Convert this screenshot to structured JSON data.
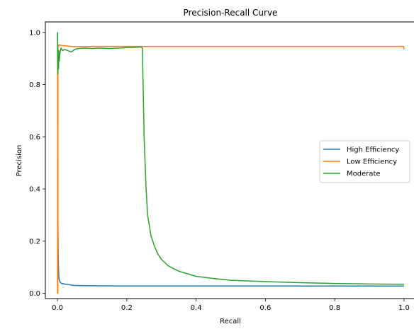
{
  "chart_data": {
    "type": "line",
    "title": "Precision-Recall Curve",
    "xlabel": "Recall",
    "ylabel": "Precision",
    "xlim": [
      -0.035,
      1.035
    ],
    "ylim": [
      -0.02,
      1.04
    ],
    "xticks": [
      0.0,
      0.2,
      0.4,
      0.6,
      0.8,
      1.0
    ],
    "xtick_labels": [
      "0.0",
      "0.2",
      "0.4",
      "0.6",
      "0.8",
      "1.0"
    ],
    "yticks": [
      0.0,
      0.2,
      0.4,
      0.6,
      0.8,
      1.0
    ],
    "ytick_labels": [
      "0.0",
      "0.2",
      "0.4",
      "0.6",
      "0.8",
      "1.0"
    ],
    "grid": false,
    "legend": "center-right",
    "series": [
      {
        "name": "High Efficiency",
        "color": "#1f77b4",
        "x": [
          0.0,
          0.001,
          0.002,
          0.003,
          0.004,
          0.006,
          0.008,
          0.012,
          0.02,
          0.05,
          0.1,
          0.2,
          0.4,
          0.6,
          0.8,
          1.0
        ],
        "y": [
          1.0,
          0.31,
          0.16,
          0.09,
          0.06,
          0.048,
          0.042,
          0.038,
          0.036,
          0.03,
          0.029,
          0.028,
          0.028,
          0.028,
          0.028,
          0.028
        ]
      },
      {
        "name": "Low Efficiency",
        "color": "#ff7f0e",
        "x": [
          0.0,
          0.0005,
          0.001,
          0.0015,
          0.002,
          0.003,
          0.005,
          0.01,
          0.05,
          0.1,
          0.2,
          0.4,
          0.6,
          0.8,
          0.999,
          1.0
        ],
        "y": [
          0.0,
          0.95,
          0.0,
          0.95,
          0.952,
          0.948,
          0.952,
          0.95,
          0.945,
          0.946,
          0.946,
          0.946,
          0.946,
          0.946,
          0.946,
          0.935
        ]
      },
      {
        "name": "Moderate",
        "color": "#2ca02c",
        "x": [
          0.0,
          0.001,
          0.002,
          0.003,
          0.004,
          0.005,
          0.007,
          0.01,
          0.015,
          0.02,
          0.03,
          0.04,
          0.05,
          0.06,
          0.08,
          0.1,
          0.12,
          0.15,
          0.18,
          0.2,
          0.22,
          0.24,
          0.245,
          0.25,
          0.255,
          0.26,
          0.27,
          0.28,
          0.29,
          0.3,
          0.32,
          0.35,
          0.4,
          0.45,
          0.5,
          0.6,
          0.7,
          0.8,
          0.9,
          1.0
        ],
        "y": [
          1.0,
          0.84,
          0.9,
          0.86,
          0.93,
          0.89,
          0.92,
          0.94,
          0.93,
          0.935,
          0.93,
          0.925,
          0.935,
          0.938,
          0.94,
          0.938,
          0.94,
          0.938,
          0.94,
          0.942,
          0.942,
          0.944,
          0.94,
          0.6,
          0.42,
          0.3,
          0.22,
          0.18,
          0.15,
          0.13,
          0.105,
          0.085,
          0.065,
          0.057,
          0.05,
          0.045,
          0.041,
          0.038,
          0.036,
          0.035
        ]
      }
    ]
  }
}
